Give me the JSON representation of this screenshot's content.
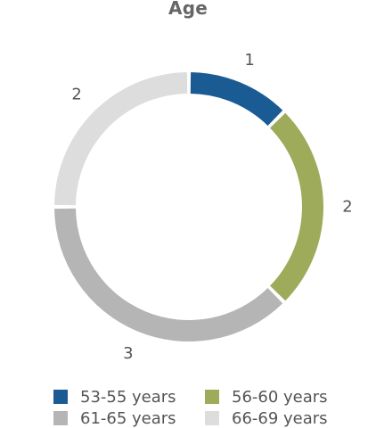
{
  "chart_data": {
    "type": "pie",
    "title": "Age",
    "subtype": "donut",
    "categories": [
      "53-55 years",
      "56-60 years",
      "61-65 years",
      "66-69 years"
    ],
    "values": [
      1,
      2,
      3,
      2
    ],
    "colors": [
      "#1b5b94",
      "#9dab5a",
      "#b5b5b5",
      "#dddddd"
    ],
    "data_labels": [
      "1",
      "2",
      "3",
      "2"
    ],
    "legend_position": "bottom"
  }
}
